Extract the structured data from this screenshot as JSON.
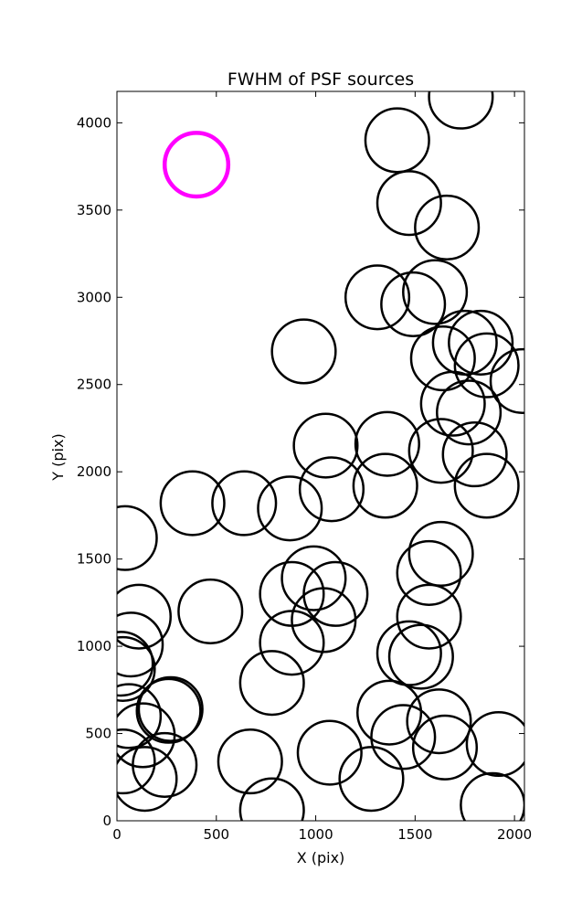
{
  "chart_data": {
    "type": "scatter",
    "title": "FWHM of PSF sources",
    "xlabel": "X (pix)",
    "ylabel": "Y (pix)",
    "xlim": [
      0,
      2050
    ],
    "ylim": [
      0,
      4180
    ],
    "xticks": [
      "0",
      "500",
      "1000",
      "1500",
      "2000"
    ],
    "yticks": [
      "0",
      "500",
      "1000",
      "1500",
      "2000",
      "2500",
      "3000",
      "3500",
      "4000"
    ],
    "grid": false,
    "radius_units": 160,
    "sources": [
      {
        "x": 1730,
        "y": 4150
      },
      {
        "x": 1410,
        "y": 3900
      },
      {
        "x": 1470,
        "y": 3540
      },
      {
        "x": 1660,
        "y": 3400
      },
      {
        "x": 1310,
        "y": 3000
      },
      {
        "x": 1600,
        "y": 3030
      },
      {
        "x": 1490,
        "y": 2960
      },
      {
        "x": 940,
        "y": 2690
      },
      {
        "x": 1750,
        "y": 2740
      },
      {
        "x": 1830,
        "y": 2740
      },
      {
        "x": 1640,
        "y": 2650
      },
      {
        "x": 1860,
        "y": 2610
      },
      {
        "x": 2040,
        "y": 2520
      },
      {
        "x": 1690,
        "y": 2390
      },
      {
        "x": 1770,
        "y": 2340
      },
      {
        "x": 1050,
        "y": 2150
      },
      {
        "x": 1360,
        "y": 2160
      },
      {
        "x": 1630,
        "y": 2120
      },
      {
        "x": 1800,
        "y": 2100
      },
      {
        "x": 1080,
        "y": 1900
      },
      {
        "x": 1350,
        "y": 1920
      },
      {
        "x": 1860,
        "y": 1920
      },
      {
        "x": 380,
        "y": 1820
      },
      {
        "x": 640,
        "y": 1820
      },
      {
        "x": 870,
        "y": 1790
      },
      {
        "x": 40,
        "y": 1620
      },
      {
        "x": 1630,
        "y": 1530
      },
      {
        "x": 1570,
        "y": 1420
      },
      {
        "x": 990,
        "y": 1390
      },
      {
        "x": 880,
        "y": 1300
      },
      {
        "x": 1100,
        "y": 1300
      },
      {
        "x": 110,
        "y": 1170
      },
      {
        "x": 470,
        "y": 1200
      },
      {
        "x": 1040,
        "y": 1150
      },
      {
        "x": 1570,
        "y": 1170
      },
      {
        "x": 70,
        "y": 1010
      },
      {
        "x": 880,
        "y": 1020
      },
      {
        "x": 1470,
        "y": 960
      },
      {
        "x": 1530,
        "y": 940
      },
      {
        "x": 20,
        "y": 900
      },
      {
        "x": 30,
        "y": 870
      },
      {
        "x": 780,
        "y": 790
      },
      {
        "x": 270,
        "y": 640
      },
      {
        "x": 260,
        "y": 630
      },
      {
        "x": 60,
        "y": 600
      },
      {
        "x": 1370,
        "y": 620
      },
      {
        "x": 1620,
        "y": 570
      },
      {
        "x": 130,
        "y": 490
      },
      {
        "x": 1440,
        "y": 480
      },
      {
        "x": 1650,
        "y": 420
      },
      {
        "x": 1920,
        "y": 440
      },
      {
        "x": 1070,
        "y": 390
      },
      {
        "x": 30,
        "y": 340
      },
      {
        "x": 670,
        "y": 340
      },
      {
        "x": 240,
        "y": 320
      },
      {
        "x": 1280,
        "y": 240
      },
      {
        "x": 140,
        "y": 240
      },
      {
        "x": 1890,
        "y": 90
      },
      {
        "x": 780,
        "y": 60
      }
    ],
    "highlight": {
      "x": 400,
      "y": 3760,
      "color": "#ff00ff"
    },
    "source_color": "#000000"
  }
}
